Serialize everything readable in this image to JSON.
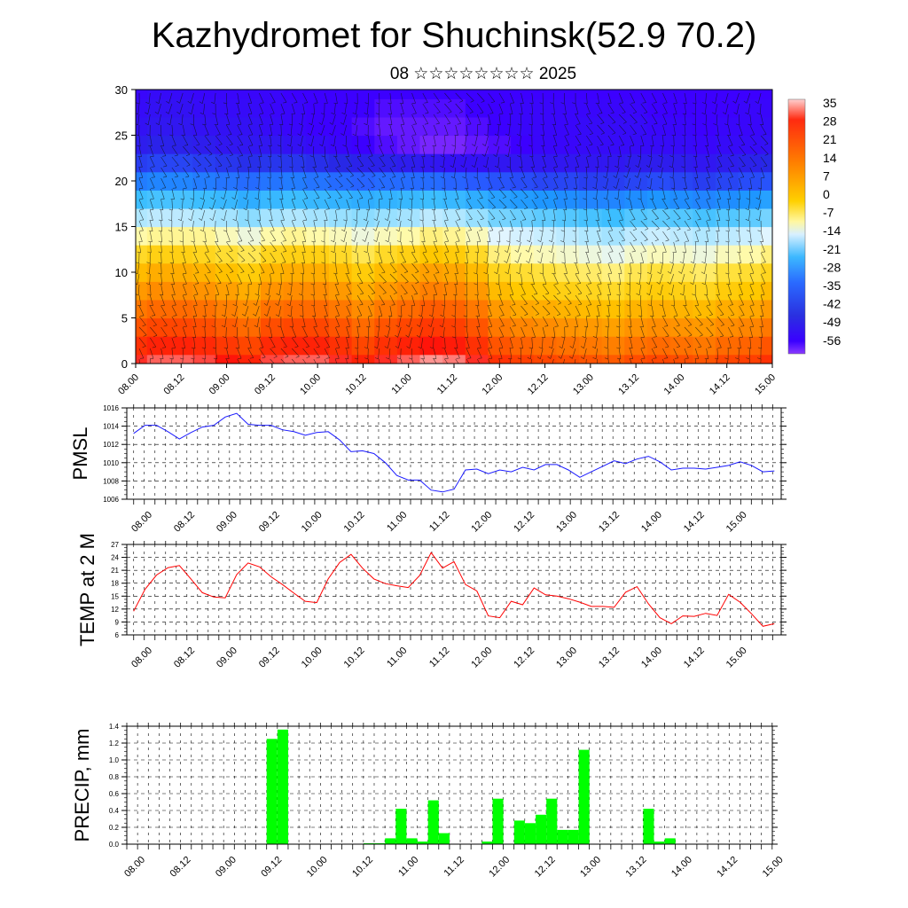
{
  "title": "Kazhydromet for Shuchinsk(52.9 70.2)",
  "subtitle": "08 ☆☆☆☆☆☆☆☆ 2025",
  "time_labels": [
    "08.00",
    "08.12",
    "09.00",
    "09.12",
    "10.00",
    "10.12",
    "11.00",
    "11.12",
    "12.00",
    "12.12",
    "13.00",
    "13.12",
    "14.00",
    "14.12",
    "15.00"
  ],
  "colors": {
    "pmsl": "#1a1aff",
    "temp": "#ff0000",
    "precip": "#00ff00"
  },
  "chart_data": [
    {
      "type": "heatmap",
      "id": "temperature-wind-section",
      "title": "",
      "xlabel": "",
      "ylabel": "",
      "xlim": [
        0,
        14
      ],
      "ylim": [
        0,
        30
      ],
      "y_ticks": [
        0,
        5,
        10,
        15,
        20,
        25,
        30
      ],
      "colorbar": {
        "labels": [
          "35",
          "28",
          "21",
          "14",
          "7",
          "0",
          "-7",
          "-14",
          "-21",
          "-28",
          "-35",
          "-42",
          "-49",
          "-56"
        ],
        "min": -60,
        "max": 39
      },
      "vectors": "wind barbs overlay",
      "x": [
        0,
        0.5,
        1,
        1.5,
        2,
        2.5,
        3,
        3.5,
        4,
        4.5,
        5,
        5.5,
        6,
        6.5,
        7,
        7.5,
        8,
        8.5,
        9,
        9.5,
        10,
        10.5,
        11,
        11.5,
        12,
        12.5,
        13,
        13.5,
        14
      ],
      "y": [
        0,
        2,
        4,
        6,
        8,
        10,
        12,
        14,
        16,
        18,
        20,
        22,
        24,
        26,
        28,
        30
      ],
      "z": [
        [
          29,
          31,
          31,
          30,
          28,
          26,
          30,
          31,
          31,
          29,
          26,
          29,
          31,
          33,
          32,
          29,
          24,
          22,
          21,
          20,
          19,
          18,
          20,
          21,
          20,
          19,
          21,
          22,
          24
        ],
        [
          24,
          26,
          26,
          25,
          23,
          21,
          25,
          26,
          26,
          24,
          21,
          24,
          26,
          28,
          27,
          24,
          19,
          17,
          16,
          15,
          14,
          13,
          15,
          16,
          15,
          14,
          16,
          17,
          19
        ],
        [
          19,
          21,
          21,
          20,
          18,
          16,
          20,
          21,
          21,
          19,
          16,
          19,
          21,
          23,
          22,
          19,
          14,
          12,
          11,
          10,
          9,
          8,
          10,
          11,
          10,
          9,
          11,
          12,
          14
        ],
        [
          14,
          16,
          16,
          15,
          13,
          11,
          15,
          16,
          16,
          14,
          11,
          14,
          16,
          18,
          17,
          14,
          9,
          7,
          6,
          5,
          4,
          3,
          5,
          6,
          5,
          4,
          6,
          7,
          9
        ],
        [
          9,
          11,
          11,
          10,
          8,
          6,
          10,
          11,
          11,
          9,
          6,
          9,
          11,
          13,
          12,
          9,
          4,
          2,
          1,
          0,
          -1,
          -2,
          0,
          1,
          0,
          -1,
          1,
          2,
          4
        ],
        [
          4,
          6,
          6,
          5,
          3,
          1,
          5,
          6,
          6,
          4,
          1,
          4,
          6,
          8,
          7,
          4,
          -1,
          -3,
          -4,
          -5,
          -6,
          -7,
          -5,
          -4,
          -5,
          -6,
          -4,
          -3,
          -1
        ],
        [
          -2,
          0,
          0,
          -1,
          -3,
          -5,
          -1,
          0,
          0,
          -2,
          -5,
          -2,
          0,
          2,
          1,
          -2,
          -7,
          -9,
          -10,
          -11,
          -12,
          -13,
          -11,
          -10,
          -11,
          -12,
          -10,
          -9,
          -7
        ],
        [
          -9,
          -8,
          -8,
          -8,
          -10,
          -12,
          -9,
          -8,
          -9,
          -10,
          -12,
          -10,
          -9,
          -7,
          -8,
          -10,
          -14,
          -15,
          -16,
          -17,
          -18,
          -19,
          -17,
          -16,
          -17,
          -18,
          -17,
          -16,
          -14
        ],
        [
          -18,
          -17,
          -17,
          -18,
          -19,
          -21,
          -19,
          -18,
          -19,
          -20,
          -21,
          -20,
          -19,
          -17,
          -18,
          -20,
          -23,
          -24,
          -25,
          -26,
          -27,
          -28,
          -26,
          -25,
          -26,
          -27,
          -26,
          -25,
          -23
        ],
        [
          -28,
          -27,
          -27,
          -28,
          -29,
          -31,
          -29,
          -28,
          -29,
          -30,
          -31,
          -30,
          -29,
          -28,
          -29,
          -31,
          -33,
          -34,
          -35,
          -36,
          -37,
          -37,
          -36,
          -35,
          -36,
          -37,
          -36,
          -35,
          -33
        ],
        [
          -38,
          -37,
          -37,
          -38,
          -39,
          -40,
          -39,
          -38,
          -39,
          -40,
          -41,
          -40,
          -40,
          -40,
          -41,
          -42,
          -43,
          -44,
          -45,
          -45,
          -46,
          -46,
          -45,
          -44,
          -45,
          -46,
          -45,
          -44,
          -43
        ],
        [
          -46,
          -45,
          -45,
          -46,
          -47,
          -48,
          -47,
          -47,
          -48,
          -49,
          -50,
          -50,
          -51,
          -52,
          -53,
          -53,
          -52,
          -52,
          -52,
          -52,
          -52,
          -52,
          -51,
          -51,
          -51,
          -52,
          -51,
          -50,
          -49
        ],
        [
          -51,
          -50,
          -50,
          -51,
          -52,
          -52,
          -52,
          -53,
          -54,
          -55,
          -56,
          -57,
          -58,
          -59,
          -59,
          -58,
          -57,
          -56,
          -55,
          -55,
          -54,
          -54,
          -54,
          -54,
          -54,
          -55,
          -54,
          -54,
          -53
        ],
        [
          -53,
          -52,
          -52,
          -53,
          -53,
          -53,
          -54,
          -55,
          -56,
          -56,
          -57,
          -58,
          -58,
          -58,
          -58,
          -57,
          -56,
          -55,
          -55,
          -55,
          -54,
          -54,
          -54,
          -55,
          -55,
          -56,
          -55,
          -55,
          -54
        ],
        [
          -54,
          -53,
          -53,
          -54,
          -54,
          -54,
          -55,
          -55,
          -56,
          -56,
          -56,
          -57,
          -57,
          -57,
          -57,
          -56,
          -56,
          -55,
          -55,
          -55,
          -55,
          -55,
          -55,
          -56,
          -56,
          -56,
          -56,
          -55,
          -55
        ],
        [
          -55,
          -54,
          -54,
          -55,
          -55,
          -55,
          -55,
          -56,
          -56,
          -56,
          -56,
          -56,
          -56,
          -56,
          -56,
          -56,
          -56,
          -56,
          -56,
          -56,
          -56,
          -56,
          -56,
          -56,
          -56,
          -56,
          -56,
          -56,
          -56
        ]
      ]
    },
    {
      "type": "line",
      "id": "pmsl",
      "ylabel": "PMSL",
      "ylim": [
        1006,
        1016
      ],
      "y_ticks": [
        1006,
        1008,
        1010,
        1012,
        1014,
        1016
      ],
      "xlim": [
        -0.15,
        14.15
      ],
      "grid": true,
      "series": [
        {
          "x": [
            0,
            0.25,
            0.5,
            0.75,
            1,
            1.25,
            1.5,
            1.75,
            2,
            2.25,
            2.5,
            2.75,
            3,
            3.25,
            3.5,
            3.75,
            4,
            4.25,
            4.5,
            4.75,
            5,
            5.25,
            5.5,
            5.75,
            6,
            6.25,
            6.5,
            6.75,
            7,
            7.25,
            7.5,
            7.75,
            8,
            8.25,
            8.5,
            8.75,
            9,
            9.25,
            9.5,
            9.75,
            10,
            10.25,
            10.5,
            10.75,
            11,
            11.25,
            11.5,
            11.75,
            12,
            12.25,
            12.5,
            12.75,
            13,
            13.25,
            13.5,
            13.75,
            14
          ],
          "values": [
            1013.2,
            1014.1,
            1014.1,
            1013.4,
            1012.6,
            1013.3,
            1013.9,
            1014.1,
            1015.0,
            1015.4,
            1014.2,
            1014.1,
            1014.1,
            1013.6,
            1013.4,
            1013.0,
            1013.3,
            1013.4,
            1012.5,
            1011.2,
            1011.3,
            1011.0,
            1010.0,
            1008.6,
            1008.1,
            1008.1,
            1007.0,
            1006.8,
            1007.1,
            1009.2,
            1009.3,
            1008.8,
            1009.2,
            1009.0,
            1009.5,
            1009.2,
            1009.8,
            1009.8,
            1009.2,
            1008.4,
            1009.0,
            1009.6,
            1010.2,
            1009.9,
            1010.4,
            1010.7,
            1010.1,
            1009.2,
            1009.4,
            1009.4,
            1009.3,
            1009.5,
            1009.7,
            1010.1,
            1009.7,
            1009.0,
            1009.1
          ]
        }
      ]
    },
    {
      "type": "line",
      "id": "temperature-2m",
      "ylabel": "TEMP at 2 M",
      "ylim": [
        6,
        27
      ],
      "y_ticks": [
        6,
        9,
        12,
        15,
        18,
        21,
        24,
        27
      ],
      "xlim": [
        -0.15,
        14.15
      ],
      "grid": true,
      "series": [
        {
          "x": [
            0,
            0.25,
            0.5,
            0.75,
            1,
            1.25,
            1.5,
            1.75,
            2,
            2.25,
            2.5,
            2.75,
            3,
            3.25,
            3.5,
            3.75,
            4,
            4.25,
            4.5,
            4.75,
            5,
            5.25,
            5.5,
            5.75,
            6,
            6.25,
            6.5,
            6.75,
            7,
            7.25,
            7.5,
            7.75,
            8,
            8.25,
            8.5,
            8.75,
            9,
            9.25,
            9.5,
            9.75,
            10,
            10.25,
            10.5,
            10.75,
            11,
            11.25,
            11.5,
            11.75,
            12,
            12.25,
            12.5,
            12.75,
            13,
            13.25,
            13.5,
            13.75,
            14
          ],
          "values": [
            11.5,
            16.6,
            19.9,
            21.6,
            22.1,
            19.0,
            15.8,
            14.8,
            14.6,
            20.0,
            22.7,
            21.8,
            19.5,
            17.7,
            15.7,
            13.8,
            13.5,
            19.0,
            22.8,
            24.7,
            21.5,
            19.0,
            17.9,
            17.4,
            17.0,
            19.8,
            25.1,
            21.5,
            23.0,
            17.7,
            16.2,
            10.4,
            10.0,
            13.8,
            13.0,
            16.9,
            15.3,
            15.0,
            14.4,
            13.6,
            12.6,
            12.6,
            12.4,
            15.9,
            17.2,
            13.2,
            10.0,
            8.6,
            10.4,
            10.3,
            11.0,
            10.5,
            15.4,
            13.6,
            10.9,
            8.0,
            8.6
          ]
        }
      ]
    },
    {
      "type": "bar",
      "id": "precipitation",
      "ylabel": "PRECIP, mm",
      "ylim": [
        0,
        1.4
      ],
      "y_ticks": [
        "0.0",
        "0.2",
        "0.4",
        "0.6",
        "0.8",
        "1.0",
        "1.2",
        "1.4"
      ],
      "xlim": [
        0,
        15
      ],
      "grid": true,
      "series": [
        {
          "x": [
            3.25,
            3.5,
            5.0,
            5.25,
            5.5,
            5.75,
            6.0,
            6.25,
            6.5,
            6.75,
            7.0,
            7.25,
            7.5,
            7.75,
            8.0,
            8.25,
            8.5,
            8.75,
            9.0,
            9.25,
            9.5,
            9.75,
            10.0,
            10.25,
            10.5,
            10.75,
            12.0,
            12.25,
            12.5,
            12.75
          ],
          "values": [
            1.25,
            1.36,
            0.0,
            0.0,
            0.01,
            0.01,
            0.07,
            0.42,
            0.07,
            0.03,
            0.52,
            0.13,
            0.0,
            0.0,
            0.0,
            0.03,
            0.54,
            0.0,
            0.28,
            0.25,
            0.35,
            0.54,
            0.17,
            0.17,
            1.12,
            0.0,
            0.42,
            0.03,
            0.07,
            0.0
          ],
          "bar_width": 0.25
        }
      ]
    }
  ]
}
